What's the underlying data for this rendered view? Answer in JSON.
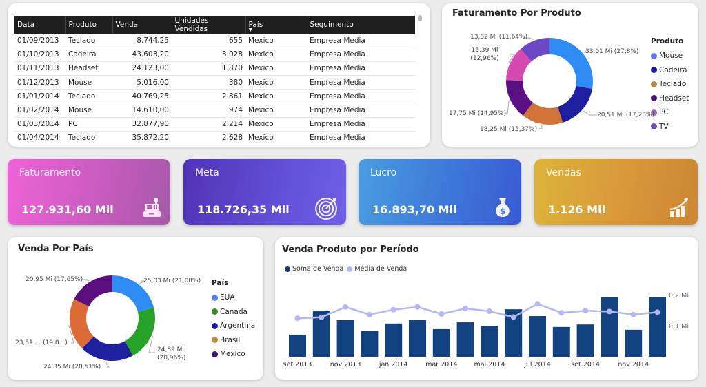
{
  "table": {
    "columns": [
      "Data",
      "Produto",
      "Venda",
      "Unidades Vendidas",
      "País",
      "Seguimento"
    ],
    "sorted_column": "País",
    "rows": [
      [
        "01/09/2013",
        "Teclado",
        "8.744,25",
        "655",
        "Mexico",
        "Empresa Media"
      ],
      [
        "01/10/2013",
        "Cadeira",
        "43.603,20",
        "3.028",
        "Mexico",
        "Empresa Media"
      ],
      [
        "01/11/2013",
        "Headset",
        "24.123,00",
        "1.870",
        "Mexico",
        "Empresa Media"
      ],
      [
        "01/12/2013",
        "Mouse",
        "5.016,00",
        "380",
        "Mexico",
        "Empresa Media"
      ],
      [
        "01/01/2014",
        "Teclado",
        "40.769,25",
        "2.861",
        "Mexico",
        "Empresa Media"
      ],
      [
        "01/02/2014",
        "Mouse",
        "14.610,00",
        "974",
        "Mexico",
        "Empresa Media"
      ],
      [
        "01/03/2014",
        "PC",
        "32.877,90",
        "2.214",
        "Mexico",
        "Empresa Media"
      ],
      [
        "01/04/2014",
        "Teclado",
        "35.872,20",
        "2.628",
        "Mexico",
        "Empresa Media"
      ]
    ]
  },
  "kpis": {
    "faturamento": {
      "label": "Faturamento",
      "value": "127.931,60 Mil",
      "icon": "cash-register-icon"
    },
    "meta": {
      "label": "Meta",
      "value": "118.726,35 Mil",
      "icon": "target-icon"
    },
    "lucro": {
      "label": "Lucro",
      "value": "16.893,70 Mil",
      "icon": "money-bag-icon"
    },
    "vendas": {
      "label": "Vendas",
      "value": "1.126 Mil",
      "icon": "growth-chart-icon"
    }
  },
  "chart_data": [
    {
      "type": "pie",
      "title": "Faturamento Por Produto",
      "legend_title": "Produto",
      "legend_position": "right",
      "categories": [
        "Mouse",
        "Cadeira",
        "Teclado",
        "Headset",
        "PC",
        "TV"
      ],
      "values": [
        33.01,
        20.51,
        18.25,
        17.75,
        15.39,
        13.82
      ],
      "percents": [
        27.8,
        17.28,
        15.37,
        14.95,
        12.96,
        11.64
      ],
      "labels": [
        "33,01 Mi (27,8%)",
        "20,51 Mi (17,28%)",
        "18,25 Mi (15,37%)",
        "17,75 Mi (14,95%)",
        "15,39 Mi (12,96%)",
        "13,82 Mi (11,64%)"
      ],
      "colors": [
        "#2f8cf5",
        "#1d1fa0",
        "#d2733a",
        "#5a0f82",
        "#d549b0",
        "#6b48c4"
      ],
      "legend_colors": [
        "#5b7cf0",
        "#1a1a9e",
        "#b88a3c",
        "#4a1470",
        "#a06aae",
        "#6e4fc6"
      ]
    },
    {
      "type": "pie",
      "title": "Venda Por País",
      "legend_title": "País",
      "legend_position": "right",
      "categories": [
        "EUA",
        "Canada",
        "Argentina",
        "Brasil",
        "Mexico"
      ],
      "values": [
        25.03,
        24.89,
        24.35,
        23.51,
        20.95
      ],
      "percents": [
        21.08,
        20.96,
        20.51,
        19.8,
        17.65
      ],
      "labels": [
        "25,03 Mi (21,08%)",
        "24,89 Mi (20,96%)",
        "24,35 Mi (20,51%)",
        "23,51 ... (19,8...)",
        "20,95 Mi (17,65%)"
      ],
      "colors": [
        "#2f8cf5",
        "#27a32a",
        "#1e1f9c",
        "#dc6a36",
        "#5b0f7e"
      ],
      "legend_colors": [
        "#5b7cf0",
        "#3d8a2a",
        "#1a1a9e",
        "#b88a3c",
        "#3a1670"
      ]
    },
    {
      "type": "bar",
      "title": "Venda Produto por Período",
      "legend_position": "top-left",
      "x": [
        "set 2013",
        "out 2013",
        "nov 2013",
        "dez 2013",
        "jan 2014",
        "fev 2014",
        "mar 2014",
        "abr 2014",
        "mai 2014",
        "jun 2014",
        "jul 2014",
        "ago 2014",
        "set 2014",
        "out 2014",
        "nov 2014",
        "dez 2014"
      ],
      "x_tick_labels": [
        "set 2013",
        "nov 2013",
        "jan 2014",
        "mar 2014",
        "mai 2014",
        "jul 2014",
        "set 2014",
        "nov 2014"
      ],
      "y_ticks": [
        "0,1 Mi",
        "0,2 Mi"
      ],
      "ylim": [
        0,
        0.2
      ],
      "series": [
        {
          "name": "Soma de Venda",
          "type": "bar",
          "color": "#12427f",
          "values": [
            0.071,
            0.149,
            0.118,
            0.084,
            0.107,
            0.118,
            0.089,
            0.111,
            0.1,
            0.153,
            0.131,
            0.096,
            0.104,
            0.193,
            0.087,
            0.193
          ]
        },
        {
          "name": "Média de Venda",
          "type": "line",
          "color": "#b3b8f2",
          "values": [
            0.129,
            0.136,
            0.211,
            0.156,
            0.191,
            0.211,
            0.16,
            0.2,
            0.18,
            0.138,
            0.233,
            0.169,
            0.184,
            0.178,
            0.156,
            0.173
          ]
        }
      ]
    }
  ]
}
